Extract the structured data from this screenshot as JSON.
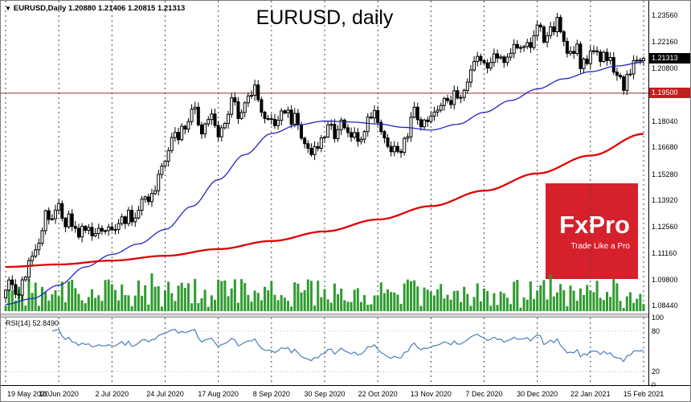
{
  "header": {
    "marker": "▼",
    "symbol_line": "EURUSD,Daily  1.20880 1.21406 1.20815 1.21313"
  },
  "title": "EURUSD, daily",
  "logo": {
    "name": "FxPro",
    "tagline": "Trade Like a Pro",
    "bg": "#d6202c"
  },
  "price_axis": {
    "current_badge": {
      "text": "1.21313",
      "price": 1.21313
    },
    "level_badge": {
      "text": "1.19500",
      "price": 1.195
    }
  },
  "colors": {
    "up_candle": "#ffffff",
    "down_candle": "#000000",
    "candle_border": "#000000",
    "ma_fast": "#2323c8",
    "ma_slow": "#e00000",
    "hline": "#993333",
    "volume": "#2f9b2f",
    "rsi_line": "#4a7ebb",
    "grid": "#444444"
  },
  "chart_data": {
    "type": "candlestick",
    "symbol": "EURUSD",
    "timeframe": "Daily",
    "title": "EURUSD, daily",
    "ohlc_current": {
      "open": "1.20880",
      "high": "1.21406",
      "low": "1.20815",
      "close": "1.21313"
    },
    "y_axis": {
      "min": 1.0844,
      "max": 1.2356,
      "labels": [
        {
          "text": "1.23560",
          "price": 1.2356
        },
        {
          "text": "1.22160",
          "price": 1.2216
        },
        {
          "text": "1.20800",
          "price": 1.208
        },
        {
          "text": "1.18040",
          "price": 1.1804
        },
        {
          "text": "1.16680",
          "price": 1.1668
        },
        {
          "text": "1.15280",
          "price": 1.1528
        },
        {
          "text": "1.13920",
          "price": 1.1392
        },
        {
          "text": "1.12560",
          "price": 1.1256
        },
        {
          "text": "1.11160",
          "price": 1.1116
        },
        {
          "text": "1.09800",
          "price": 1.098
        },
        {
          "text": "1.08440",
          "price": 1.0844
        }
      ]
    },
    "x_labels": [
      {
        "i": 0,
        "label": "19 May 2020"
      },
      {
        "i": 16,
        "label": "10 Jun 2020"
      },
      {
        "i": 32,
        "label": "2 Jul 2020"
      },
      {
        "i": 48,
        "label": "24 Jul 2020"
      },
      {
        "i": 64,
        "label": "17 Aug 2020"
      },
      {
        "i": 80,
        "label": "8 Sep 2020"
      },
      {
        "i": 96,
        "label": "30 Sep 2020"
      },
      {
        "i": 112,
        "label": "22 Oct 2020"
      },
      {
        "i": 128,
        "label": "13 Nov 2020"
      },
      {
        "i": 144,
        "label": "7 Dec 2020"
      },
      {
        "i": 160,
        "label": "30 Dec 2020"
      },
      {
        "i": 176,
        "label": "22 Jan 2021"
      },
      {
        "i": 192,
        "label": "15 Feb 2021"
      }
    ],
    "horizontal_level": 1.195,
    "closes": [
      1.0924,
      1.0977,
      1.0953,
      1.0902,
      1.0898,
      1.0978,
      1.0992,
      1.1078,
      1.1101,
      1.1134,
      1.1169,
      1.1234,
      1.1338,
      1.1292,
      1.1296,
      1.1341,
      1.1375,
      1.1299,
      1.1254,
      1.1321,
      1.1256,
      1.1246,
      1.1201,
      1.1257,
      1.1236,
      1.1251,
      1.1207,
      1.1219,
      1.1246,
      1.1232,
      1.1234,
      1.1253,
      1.1239,
      1.124,
      1.1271,
      1.1306,
      1.1271,
      1.134,
      1.128,
      1.13,
      1.134,
      1.1398,
      1.141,
      1.1385,
      1.1427,
      1.1442,
      1.1527,
      1.157,
      1.1596,
      1.1651,
      1.1719,
      1.1746,
      1.1708,
      1.1778,
      1.1763,
      1.1802,
      1.1867,
      1.1877,
      1.1785,
      1.1738,
      1.179,
      1.1813,
      1.1842,
      1.1782,
      1.1723,
      1.177,
      1.1793,
      1.184,
      1.1926,
      1.1905,
      1.1818,
      1.185,
      1.19,
      1.1936,
      1.1939,
      1.1993,
      1.1916,
      1.1851,
      1.1818,
      1.1817,
      1.1814,
      1.1781,
      1.1809,
      1.1858,
      1.1847,
      1.1862,
      1.1788,
      1.1845,
      1.1786,
      1.1716,
      1.1687,
      1.1663,
      1.163,
      1.1672,
      1.1663,
      1.1717,
      1.1722,
      1.1785,
      1.1788,
      1.1713,
      1.176,
      1.181,
      1.177,
      1.1745,
      1.1721,
      1.1745,
      1.1699,
      1.171,
      1.175,
      1.1826,
      1.1821,
      1.186,
      1.1798,
      1.175,
      1.1717,
      1.1673,
      1.1645,
      1.1673,
      1.1647,
      1.1641,
      1.1715,
      1.1723,
      1.1825,
      1.1877,
      1.1812,
      1.1775,
      1.181,
      1.1802,
      1.1831,
      1.1852,
      1.1862,
      1.1886,
      1.1923,
      1.1912,
      1.1891,
      1.1963,
      1.1925,
      1.1928,
      1.1965,
      1.2008,
      1.2071,
      1.2115,
      1.2142,
      1.212,
      1.2108,
      1.2081,
      1.211,
      1.2155,
      1.2133,
      1.2139,
      1.211,
      1.2138,
      1.2158,
      1.2204,
      1.2186,
      1.2188,
      1.2193,
      1.2214,
      1.2188,
      1.225,
      1.2305,
      1.2295,
      1.2216,
      1.225,
      1.2296,
      1.227,
      1.2345,
      1.227,
      1.222,
      1.2158,
      1.2168,
      1.2157,
      1.2206,
      1.2078,
      1.2128,
      1.2104,
      1.217,
      1.2171,
      1.2165,
      1.2115,
      1.2163,
      1.212,
      1.2136,
      1.206,
      1.2043,
      1.2035,
      1.1965,
      1.2048,
      1.205,
      1.212,
      1.2122,
      1.2119,
      1.2131
    ],
    "ma_fast": {
      "name": "fast moving average (blue)",
      "points": [
        [
          0,
          1.085
        ],
        [
          8,
          1.088
        ],
        [
          16,
          1.095
        ],
        [
          24,
          1.1045
        ],
        [
          32,
          1.111
        ],
        [
          40,
          1.1165
        ],
        [
          48,
          1.124
        ],
        [
          56,
          1.136
        ],
        [
          64,
          1.15
        ],
        [
          72,
          1.163
        ],
        [
          80,
          1.174
        ],
        [
          88,
          1.1785
        ],
        [
          96,
          1.1805
        ],
        [
          104,
          1.18
        ],
        [
          112,
          1.179
        ],
        [
          120,
          1.1772
        ],
        [
          128,
          1.1758
        ],
        [
          136,
          1.1788
        ],
        [
          144,
          1.185
        ],
        [
          152,
          1.1912
        ],
        [
          160,
          1.1972
        ],
        [
          168,
          1.2025
        ],
        [
          176,
          1.2062
        ],
        [
          184,
          1.2092
        ],
        [
          192,
          1.2112
        ]
      ]
    },
    "ma_slow": {
      "name": "slow moving average (red)",
      "points": [
        [
          0,
          1.1045
        ],
        [
          16,
          1.1058
        ],
        [
          32,
          1.1078
        ],
        [
          48,
          1.1103
        ],
        [
          64,
          1.1138
        ],
        [
          80,
          1.118
        ],
        [
          96,
          1.123
        ],
        [
          112,
          1.1292
        ],
        [
          128,
          1.1362
        ],
        [
          144,
          1.1442
        ],
        [
          160,
          1.1532
        ],
        [
          176,
          1.1625
        ],
        [
          192,
          1.1738
        ]
      ]
    },
    "rsi": {
      "label": "RSI(14) 52.8490",
      "period": 14,
      "current": 52.849,
      "scale_labels": [
        "100",
        "80",
        "20",
        "0"
      ],
      "scale_values": [
        100,
        80,
        20,
        0
      ]
    }
  }
}
